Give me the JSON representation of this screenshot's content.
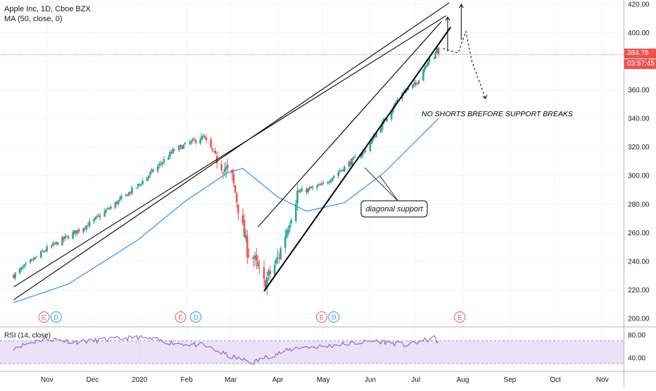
{
  "legend": {
    "line1": "Apple Inc, 1D, Cboe BZX",
    "line2": "MA (50, close, 0)"
  },
  "rsi": {
    "label": "RSI (14, close)",
    "ticks": [
      "80.00",
      "40.00"
    ]
  },
  "price_labels": {
    "current": "384.76",
    "countdown": "03:57:45"
  },
  "annotations": {
    "support_text": "NO SHORTS BREFORE SUPPORT BREAKS",
    "diagonal_label": "diagonal support"
  },
  "event_markers": [
    "E",
    "D",
    "E",
    "D",
    "E",
    "D",
    "E"
  ],
  "colors": {
    "up": "#26a69a",
    "down": "#ef5350",
    "ma": "#2196f3",
    "rsi": "#7e57c2",
    "rsi_band": "#e1d5f3",
    "grid": "#f0f3fa",
    "trend": "#000000",
    "price_line": "#ef5350"
  },
  "chart_data": {
    "type": "candlestick",
    "title": "Apple Inc, 1D, Cboe BZX",
    "ylim": [
      195,
      423
    ],
    "y_ticks": [
      "420.00",
      "400.00",
      "380.00",
      "360.00",
      "340.00",
      "320.00",
      "300.00",
      "280.00",
      "260.00",
      "240.00",
      "220.00",
      "200.00"
    ],
    "x_ticks": [
      "Nov",
      "Dec",
      "2020",
      "Feb",
      "Mar",
      "Apr",
      "May",
      "Jun",
      "Jul",
      "Aug",
      "Sep",
      "Oct",
      "Nov"
    ],
    "x_tick_dates": [
      "2019-11-01",
      "2019-12-01",
      "2020-01-01",
      "2020-02-01",
      "2020-03-01",
      "2020-04-01",
      "2020-05-01",
      "2020-06-01",
      "2020-07-01",
      "2020-08-01",
      "2020-09-01",
      "2020-10-01",
      "2020-11-01"
    ],
    "price_keyframes": [
      [
        "2019-10-10",
        230
      ],
      [
        "2019-10-31",
        248
      ],
      [
        "2019-11-30",
        267
      ],
      [
        "2019-12-31",
        293
      ],
      [
        "2020-01-24",
        318
      ],
      [
        "2020-02-12",
        327
      ],
      [
        "2020-02-21",
        312
      ],
      [
        "2020-03-02",
        298
      ],
      [
        "2020-03-12",
        248
      ],
      [
        "2020-03-16",
        242
      ],
      [
        "2020-03-23",
        224
      ],
      [
        "2020-04-01",
        241
      ],
      [
        "2020-04-14",
        288
      ],
      [
        "2020-04-30",
        293
      ],
      [
        "2020-05-29",
        318
      ],
      [
        "2020-06-22",
        358
      ],
      [
        "2020-07-01",
        364
      ],
      [
        "2020-07-10",
        383
      ],
      [
        "2020-07-13",
        381
      ],
      [
        "2020-07-15",
        390
      ],
      [
        "2020-07-16",
        384.76
      ]
    ],
    "ma50_keyframes": [
      [
        "2019-10-10",
        211
      ],
      [
        "2019-11-15",
        224
      ],
      [
        "2019-12-31",
        255
      ],
      [
        "2020-01-31",
        282
      ],
      [
        "2020-02-28",
        302
      ],
      [
        "2020-03-09",
        305
      ],
      [
        "2020-04-01",
        285
      ],
      [
        "2020-04-20",
        275
      ],
      [
        "2020-05-15",
        281
      ],
      [
        "2020-06-10",
        302
      ],
      [
        "2020-07-16",
        340
      ]
    ],
    "rsi_keyframes": [
      [
        "2019-10-10",
        58
      ],
      [
        "2019-10-31",
        74
      ],
      [
        "2019-11-20",
        68
      ],
      [
        "2019-12-31",
        76
      ],
      [
        "2020-01-24",
        66
      ],
      [
        "2020-02-12",
        62
      ],
      [
        "2020-03-01",
        42
      ],
      [
        "2020-03-16",
        32
      ],
      [
        "2020-03-23",
        40
      ],
      [
        "2020-04-14",
        58
      ],
      [
        "2020-04-30",
        60
      ],
      [
        "2020-06-05",
        70
      ],
      [
        "2020-06-25",
        62
      ],
      [
        "2020-07-13",
        75
      ],
      [
        "2020-07-16",
        68
      ]
    ],
    "rsi_ylim": [
      20,
      92
    ],
    "rsi_band": [
      30,
      70
    ],
    "current_price": 384.76,
    "event_dates": [
      "2019-10-30",
      "2019-11-07",
      "2020-01-28",
      "2020-02-07",
      "2020-04-30",
      "2020-05-08",
      "2020-07-30"
    ],
    "trendlines": [
      {
        "name": "upper-trendline",
        "from": [
          "2019-10-10",
          213
        ],
        "to": [
          "2020-07-23",
          421
        ]
      },
      {
        "name": "lower-trendline",
        "from": [
          "2019-10-10",
          222
        ],
        "to": [
          "2020-07-21",
          412
        ]
      },
      {
        "name": "rising-wedge-upper",
        "from": [
          "2020-03-19",
          264
        ],
        "to": [
          "2020-07-18",
          408
        ]
      },
      {
        "name": "diagonal-support-line",
        "from": [
          "2020-03-23",
          219
        ],
        "to": [
          "2020-07-24",
          404
        ]
      }
    ],
    "projection": [
      [
        "2020-07-19",
        389
      ],
      [
        "2020-07-25",
        387
      ],
      [
        "2020-07-29",
        386
      ],
      [
        "2020-08-03",
        401
      ],
      [
        "2020-08-07",
        380
      ],
      [
        "2020-08-16",
        354
      ]
    ]
  }
}
